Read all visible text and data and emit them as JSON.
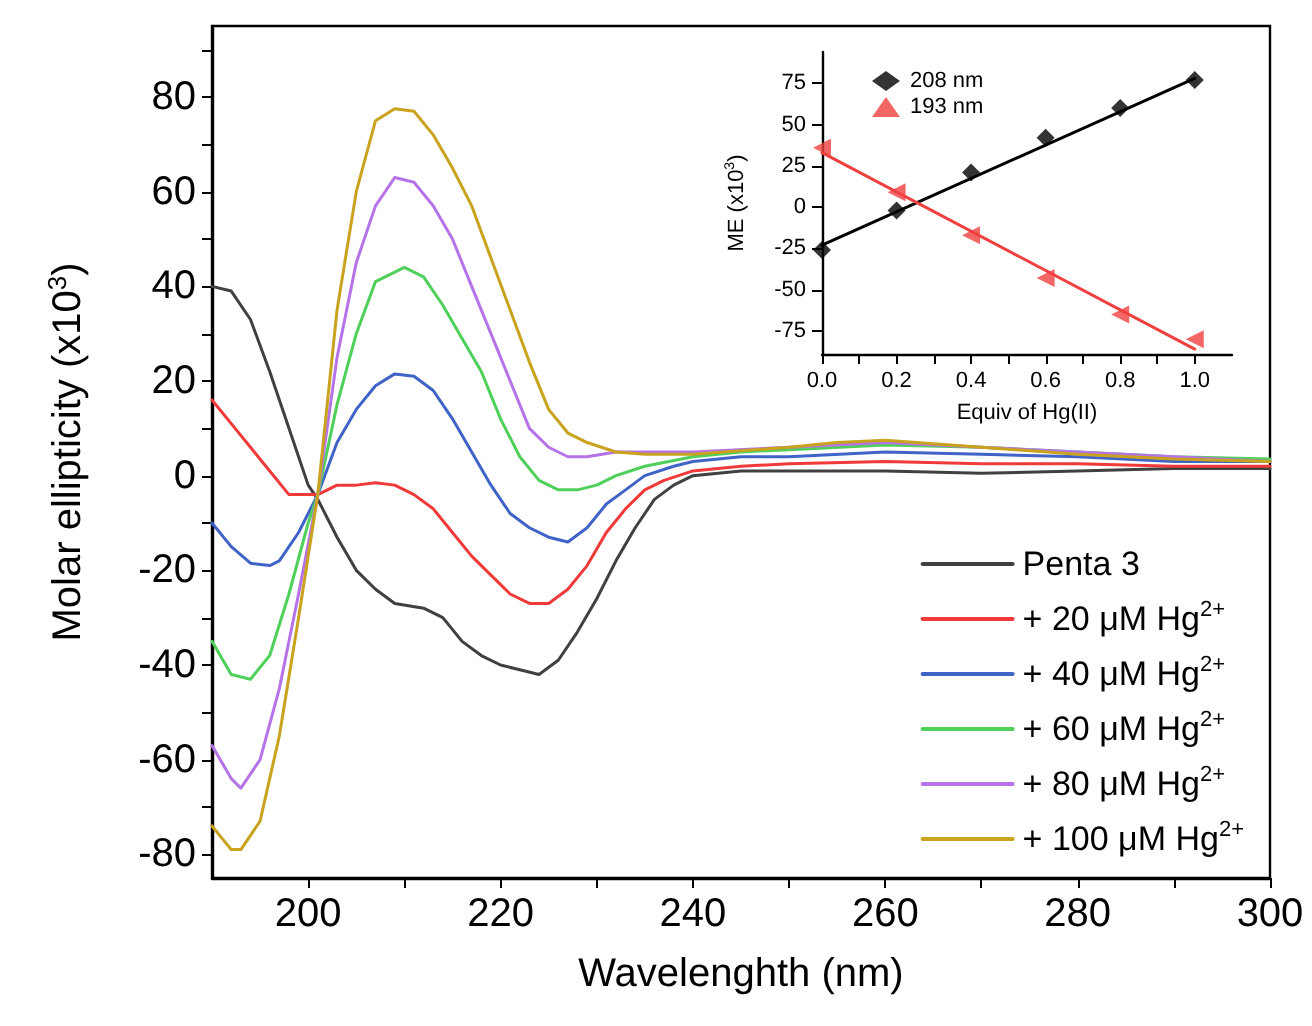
{
  "chart_data": [
    {
      "type": "line",
      "xlabel": "Wavelenghth (nm)",
      "ylabel": "Molar ellipticity (x10$^{3}$)",
      "xlim": [
        190,
        300
      ],
      "ylim": [
        -85,
        95
      ],
      "xticks": [
        200,
        {
          "value": 210,
          "label": null
        },
        220,
        {
          "value": 230,
          "label": null
        },
        240,
        {
          "value": 250,
          "label": null
        },
        260,
        {
          "value": 270,
          "label": null
        },
        280,
        {
          "value": 290,
          "label": null
        },
        300
      ],
      "yticks": [
        -80,
        {
          "value": -70,
          "label": null
        },
        -60,
        {
          "value": -50,
          "label": null
        },
        -40,
        {
          "value": -30,
          "label": null
        },
        -20,
        {
          "value": -10,
          "label": null
        },
        0,
        {
          "value": 10,
          "label": null
        },
        20,
        {
          "value": 30,
          "label": null
        },
        40,
        {
          "value": 50,
          "label": null
        },
        60,
        {
          "value": 70,
          "label": null
        },
        80,
        {
          "value": 90,
          "label": null
        }
      ],
      "grid": false,
      "legend": "bottom right",
      "marker": "none",
      "line_style": "solid",
      "series": [
        {
          "name": "Penta 3",
          "color": "#404040",
          "x": [
            190,
            192,
            194,
            196,
            198,
            200,
            201,
            203,
            205,
            207,
            209,
            212,
            214,
            216,
            218,
            220,
            222,
            224,
            226,
            228,
            230,
            232,
            234,
            236,
            238,
            240,
            245,
            250,
            260,
            270,
            280,
            290,
            300
          ],
          "values": [
            40,
            39,
            33,
            22,
            10,
            -2,
            -5,
            -13,
            -20,
            -24,
            -27,
            -28,
            -30,
            -35,
            -38,
            -40,
            -41,
            -42,
            -39,
            -33,
            -26,
            -18,
            -11,
            -5,
            -2,
            0,
            1,
            1,
            1,
            0.5,
            1,
            1.5,
            1.5
          ]
        },
        {
          "name": "+ 20 μM Hg$^{2+}$",
          "color": "#f03a3a",
          "x": [
            190,
            192,
            194,
            196,
            198,
            199,
            201,
            203,
            205,
            207,
            209,
            211,
            213,
            215,
            217,
            219,
            221,
            223,
            225,
            227,
            229,
            231,
            233,
            235,
            237,
            240,
            245,
            250,
            260,
            270,
            280,
            290,
            300
          ],
          "values": [
            16,
            11,
            6,
            1,
            -4,
            -4,
            -4,
            -2,
            -2,
            -1.5,
            -2,
            -4,
            -7,
            -12,
            -17,
            -21,
            -25,
            -27,
            -27,
            -24,
            -19,
            -12,
            -7,
            -3,
            -1,
            1,
            2,
            2.5,
            3,
            2.5,
            2.5,
            2,
            2
          ]
        },
        {
          "name": "+ 40 μM Hg$^{2+}$",
          "color": "#3f63c7",
          "x": [
            190,
            192,
            194,
            196,
            197,
            199,
            201,
            203,
            205,
            207,
            209,
            211,
            213,
            215,
            217,
            219,
            221,
            223,
            225,
            227,
            229,
            231,
            233,
            235,
            238,
            240,
            245,
            250,
            260,
            270,
            280,
            290,
            300
          ],
          "values": [
            -10,
            -15,
            -18.5,
            -19,
            -18,
            -12,
            -4,
            7,
            14,
            19,
            21.5,
            21,
            18,
            12,
            5,
            -2,
            -8,
            -11,
            -13,
            -14,
            -11,
            -6,
            -3,
            0,
            2,
            3,
            4,
            4,
            5,
            4.5,
            4,
            3,
            3
          ]
        },
        {
          "name": "+ 60 μM Hg$^{2+}$",
          "color": "#4fd05a",
          "x": [
            190,
            192,
            194,
            196,
            198,
            200,
            201,
            203,
            205,
            207,
            210,
            212,
            214,
            216,
            218,
            220,
            222,
            224,
            226,
            228,
            230,
            232,
            235,
            240,
            245,
            250,
            260,
            270,
            280,
            290,
            300
          ],
          "values": [
            -35,
            -42,
            -43,
            -38,
            -25,
            -10,
            -4,
            15,
            30,
            41,
            44,
            42,
            36,
            29,
            22,
            12,
            4,
            -1,
            -3,
            -3,
            -2,
            0,
            2,
            4,
            5,
            5.5,
            6.5,
            6,
            5,
            4,
            3.5
          ]
        },
        {
          "name": "+ 80 μM Hg$^{2+}$",
          "color": "#b673e8",
          "x": [
            190,
            192,
            193,
            195,
            197,
            199,
            201,
            203,
            205,
            207,
            209,
            211,
            213,
            215,
            217,
            219,
            221,
            223,
            225,
            227,
            229,
            232,
            235,
            240,
            250,
            260,
            270,
            280,
            290,
            300
          ],
          "values": [
            -57,
            -64,
            -66,
            -60,
            -45,
            -25,
            -4,
            25,
            45,
            57,
            63,
            62,
            57,
            50,
            40,
            30,
            20,
            10,
            6,
            4,
            4,
            5,
            5,
            5,
            6,
            7,
            6,
            5,
            4,
            3
          ]
        },
        {
          "name": "+ 100 μM Hg$^{2+}$",
          "color": "#c9a21e",
          "x": [
            190,
            192,
            193,
            195,
            197,
            199,
            201,
            203,
            205,
            207,
            209,
            211,
            213,
            215,
            217,
            219,
            221,
            223,
            225,
            227,
            229,
            232,
            235,
            240,
            250,
            255,
            260,
            270,
            280,
            290,
            300
          ],
          "values": [
            -74,
            -79,
            -79,
            -73,
            -55,
            -30,
            -4,
            35,
            60,
            75,
            77.5,
            77,
            72,
            65,
            57,
            46,
            35,
            24,
            14,
            9,
            7,
            5,
            4.5,
            4.5,
            6,
            7,
            7.5,
            6,
            4.5,
            3.5,
            3
          ]
        }
      ]
    },
    {
      "type": "scatter",
      "xlabel": "Equiv of Hg(II)",
      "ylabel": "ME (x10$^{3}$)",
      "xlim": [
        0,
        1.1
      ],
      "ylim": [
        -89,
        94
      ],
      "xticks": [
        {
          "value": 0,
          "label": "0.0"
        },
        {
          "value": 0.1,
          "label": null
        },
        0.2,
        {
          "value": 0.3,
          "label": null
        },
        0.4,
        {
          "value": 0.5,
          "label": null
        },
        0.6,
        {
          "value": 0.7,
          "label": null
        },
        0.8,
        {
          "value": 0.9,
          "label": null
        },
        {
          "value": 1,
          "label": "1.0"
        }
      ],
      "yticks": [
        -75,
        -50,
        -25,
        0,
        25,
        50,
        75
      ],
      "grid": false,
      "legend": "top left",
      "series": [
        {
          "name": "208 nm",
          "color": "#000000",
          "marker": "diamond",
          "x": [
            0,
            0.2,
            0.4,
            0.6,
            0.8,
            1.0
          ],
          "values": [
            -26,
            -2,
            21,
            42,
            60,
            77
          ]
        },
        {
          "name": "193 nm",
          "color": "#f04040",
          "marker": "triangle",
          "x": [
            0,
            0.2,
            0.4,
            0.6,
            0.8,
            1.0
          ],
          "values": [
            36,
            9,
            -17,
            -43,
            -65,
            -80
          ]
        },
        {
          "type": "line",
          "color": "#000000",
          "marker": "none",
          "x": [
            0,
            1.0
          ],
          "values": [
            -23,
            78
          ]
        },
        {
          "type": "line",
          "color": "#f04040",
          "marker": "none",
          "x": [
            0,
            1.0
          ],
          "values": [
            33,
            -86
          ]
        }
      ]
    }
  ]
}
